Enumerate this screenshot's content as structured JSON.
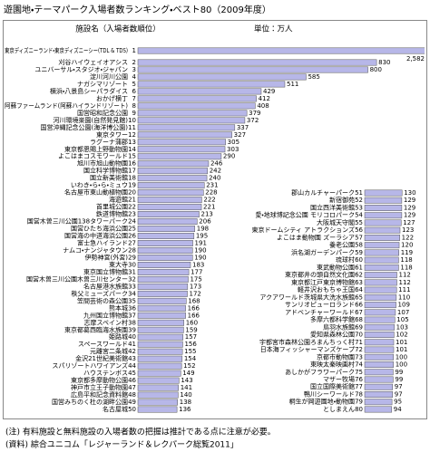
{
  "chart_data": {
    "type": "bar",
    "orientation": "horizontal",
    "title": "遊園地・テーマパーク入場者数ランキング・ベスト80（2009年度）",
    "category_header": "施設名（入場者数順位）",
    "unit_label": "単位：万人",
    "color": "#b7b7e8",
    "xlim": [
      0,
      1000
    ],
    "categories": [
      "東京ディズニーランド・東京ディズニーシー(TDL & TDS)",
      "刈谷ハイウェイオアシス",
      "ユニバーサル・スタジオ・ジャパン",
      "淀川河川公園",
      "ナガシマリゾート",
      "横浜・八景島シーパラダイス",
      "おかげ横丁",
      "阿蘇ファームランド(阿蘇ハイランドリゾート)",
      "国営昭和記念公園",
      "河川環境楽園(自然発見館)",
      "国営沖縄記念公園(海洋博公園)",
      "東京タワー",
      "ラグーナ蒲郡",
      "東京都恩賜上野動物園",
      "よこはまコスモワールド",
      "旭川市旭山動物園",
      "国立科学博物館",
      "国立新美術館",
      "いわき・ら・ら・ミュウ",
      "名古屋市東山動植物園",
      "海遊館",
      "首里城公園",
      "鉄道博物館",
      "国営木曽三川公園138タワーパーク",
      "国営ひたち海浜公園",
      "国営海の中道海浜公園",
      "富士急ハイランド",
      "ナムコ・ナンジャタウン",
      "伊勢神宮(外宮)",
      "東大寺",
      "東京国立博物館",
      "国営木曽三川公園木曽三川センター",
      "名古屋港水族館",
      "秩父ミューズパーク",
      "笠間芸術の森公園",
      "熊本城",
      "九州国立博物館",
      "志摩スペイン村",
      "東京都葛西臨海水族園",
      "姫路城",
      "スペースワールド",
      "元離宮二条城",
      "金沢21世紀美術館",
      "スパリゾートハワイアンズ",
      "ハウステンボス",
      "東京都多摩動物公園",
      "神戸市立王子動物園",
      "広島平和記念資料館",
      "国営みちのく杜の湖畔公園",
      "名古屋城",
      "郡山カルチャーパーク",
      "新宿御苑",
      "国立西洋美術館",
      "愛・地球博記念公園 モリコロパーク",
      "大阪城天守閣",
      "東京ドームシティ アトラクションズ",
      "よこはま動物園 ズーラシア",
      "養老公園",
      "浜名湖ガーデンパーク",
      "琉球村",
      "東武動物公園",
      "東京都井の頭自然文化園",
      "東京都江戸東京博物館",
      "軽井沢おもちゃ王国",
      "アクアワールド茨城県大洗水族館",
      "サンリオピューロランド",
      "アドベンチャーワールド",
      "多摩六都科学館",
      "鳥羽水族館",
      "愛知県森林公園",
      "宇都宮市森林公園ろまんちっく村",
      "日本海フィッシャーマンズケープ",
      "京都市動物園",
      "東映太秦映画村",
      "あしかがフラワーパーク",
      "マザー牧場",
      "国立国際美術館",
      "鴨川シーワールド",
      "桐生が岡遊園地・動物園",
      "としまえん"
    ],
    "ranks": [
      1,
      2,
      3,
      4,
      5,
      6,
      7,
      8,
      9,
      10,
      11,
      12,
      13,
      14,
      15,
      16,
      17,
      18,
      19,
      20,
      21,
      22,
      23,
      24,
      25,
      26,
      27,
      28,
      29,
      30,
      31,
      32,
      33,
      34,
      35,
      36,
      37,
      38,
      39,
      40,
      41,
      42,
      43,
      44,
      45,
      46,
      47,
      48,
      49,
      50,
      51,
      52,
      53,
      54,
      55,
      56,
      57,
      58,
      59,
      60,
      61,
      62,
      63,
      64,
      65,
      66,
      67,
      68,
      69,
      70,
      71,
      72,
      73,
      74,
      75,
      76,
      77,
      78,
      79,
      80
    ],
    "values": [
      2582,
      830,
      800,
      585,
      511,
      429,
      412,
      408,
      379,
      372,
      337,
      327,
      305,
      303,
      290,
      246,
      242,
      240,
      231,
      228,
      222,
      221,
      213,
      206,
      198,
      195,
      191,
      190,
      190,
      183,
      177,
      175,
      173,
      172,
      168,
      166,
      166,
      160,
      159,
      157,
      156,
      155,
      154,
      152,
      149,
      143,
      141,
      140,
      138,
      136,
      130,
      129,
      129,
      129,
      127,
      123,
      122,
      120,
      119,
      118,
      118,
      112,
      112,
      111,
      110,
      109,
      107,
      105,
      103,
      102,
      101,
      101,
      100,
      100,
      99,
      99,
      97,
      97,
      95,
      94
    ],
    "value_labels": [
      "2,582",
      "830",
      "800",
      "585",
      "511",
      "429",
      "412",
      "408",
      "379",
      "372",
      "337",
      "327",
      "305",
      "303",
      "290",
      "246",
      "242",
      "240",
      "231",
      "228",
      "222",
      "221",
      "213",
      "206",
      "198",
      "195",
      "191",
      "190",
      "190",
      "183",
      "177",
      "175",
      "173",
      "172",
      "168",
      "166",
      "166",
      "160",
      "159",
      "157",
      "156",
      "155",
      "154",
      "152",
      "149",
      "143",
      "141",
      "140",
      "138",
      "136",
      "130",
      "129",
      "129",
      "129",
      "127",
      "123",
      "122",
      "120",
      "119",
      "118",
      "118",
      "112",
      "112",
      "111",
      "110",
      "109",
      "107",
      "105",
      "103",
      "102",
      "101",
      "101",
      "100",
      "100",
      "99",
      "99",
      "97",
      "97",
      "95",
      "94"
    ],
    "notes": [
      "(注) 有料施設と無料施設の入場者数の把握は推計である点に注意が必要。",
      "(資料) 綜合ユニコム「レジャーランド＆レクパーク総覧2011」"
    ]
  }
}
